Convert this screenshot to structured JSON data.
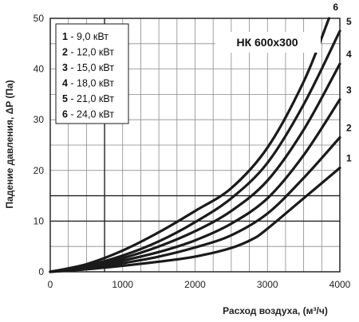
{
  "chart_data": {
    "type": "line",
    "title": "НК 600x300",
    "xlabel": "Расход воздуха, (м³/ч)",
    "ylabel": "Падение давления, ΔP (Па)",
    "xlim": [
      0,
      4000
    ],
    "ylim": [
      0,
      50
    ],
    "x_ticks": [
      "0",
      "1000",
      "2000",
      "3000",
      "4000"
    ],
    "y_ticks": [
      "0",
      "10",
      "20",
      "30",
      "40",
      "50"
    ],
    "grid": true,
    "legend_position": "top-left",
    "legend": [
      {
        "num": "1",
        "text": " -  9,0 кВт"
      },
      {
        "num": "2",
        "text": " - 12,0 кВт"
      },
      {
        "num": "3",
        "text": " - 15,0 кВт"
      },
      {
        "num": "4",
        "text": " - 18,0 кВт"
      },
      {
        "num": "5",
        "text": " - 21,0 кВт"
      },
      {
        "num": "6",
        "text": " - 24,0 кВт"
      }
    ],
    "series": [
      {
        "name": "1",
        "x": [
          0,
          500,
          1000,
          1500,
          2000,
          2500,
          2800,
          3000,
          3500,
          4000
        ],
        "y": [
          0,
          0.5,
          1.2,
          2.0,
          3.0,
          4.7,
          6.5,
          8.5,
          14.5,
          20.5
        ]
      },
      {
        "name": "2",
        "x": [
          0,
          500,
          1000,
          1500,
          2000,
          2500,
          3000,
          3500,
          4000
        ],
        "y": [
          0,
          0.6,
          1.7,
          3.0,
          4.8,
          7.2,
          11.5,
          18.5,
          26.5
        ]
      },
      {
        "name": "3",
        "x": [
          0,
          500,
          1000,
          1500,
          2000,
          2500,
          3000,
          3500,
          4000
        ],
        "y": [
          0,
          0.8,
          2.2,
          3.9,
          6.2,
          9.5,
          14.5,
          23.0,
          34.0
        ]
      },
      {
        "name": "4",
        "x": [
          0,
          500,
          1000,
          1500,
          2000,
          2500,
          3000,
          3500,
          4000
        ],
        "y": [
          0,
          1.0,
          2.7,
          5.0,
          8.0,
          12.0,
          18.0,
          28.0,
          41.0
        ]
      },
      {
        "name": "5",
        "x": [
          0,
          500,
          1000,
          1500,
          2000,
          2500,
          3000,
          3500,
          4000
        ],
        "y": [
          0,
          1.2,
          3.2,
          6.0,
          9.8,
          14.5,
          21.5,
          33.0,
          47.5
        ]
      },
      {
        "name": "6",
        "x": [
          0,
          500,
          1000,
          1500,
          2000,
          2500,
          3000,
          3500,
          3850
        ],
        "y": [
          0,
          1.5,
          4.2,
          7.8,
          12.0,
          16.5,
          24.5,
          37.5,
          50.0
        ]
      }
    ]
  }
}
